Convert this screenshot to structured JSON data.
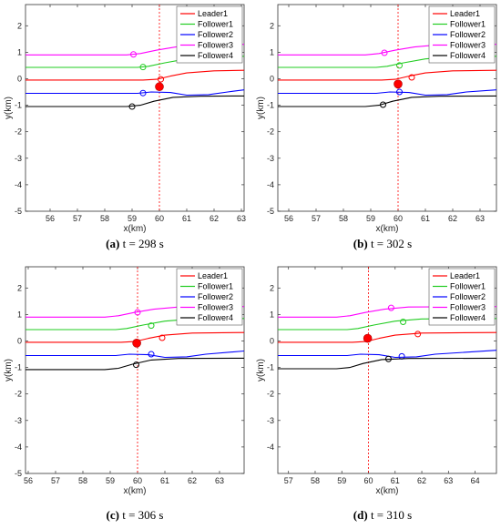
{
  "chart_data": [
    {
      "type": "line",
      "caption_letter": "(a)",
      "caption_text": "t = 298 s",
      "xlabel": "x(km)",
      "ylabel": "y(km)",
      "xlim": [
        55.1,
        63.1
      ],
      "ylim": [
        -5,
        2.8
      ],
      "xticks": [
        56,
        57,
        58,
        59,
        60,
        61,
        62,
        63
      ],
      "yticks": [
        -5,
        -4,
        -3,
        -2,
        -1,
        0,
        1,
        2
      ],
      "vline_x": 60.0,
      "legend": {
        "placement": "top-right",
        "entries": [
          "Leader1",
          "Follower1",
          "Follower2",
          "Follower3",
          "Follower4"
        ]
      },
      "series": [
        {
          "name": "Leader1",
          "color": "#ff0000",
          "x": [
            55.1,
            59.4,
            59.9,
            60.4,
            61.0,
            62.0,
            63.1
          ],
          "y": [
            -0.05,
            -0.05,
            -0.02,
            0.1,
            0.22,
            0.3,
            0.32
          ],
          "marker_x": 60.05,
          "marker_y": -0.02
        },
        {
          "name": "Follower1",
          "color": "#22cc22",
          "x": [
            55.1,
            59.2,
            59.6,
            60.2,
            61.0,
            62.0,
            63.1
          ],
          "y": [
            0.43,
            0.43,
            0.47,
            0.6,
            0.75,
            0.83,
            0.85
          ],
          "marker_x": 59.4,
          "marker_y": 0.44
        },
        {
          "name": "Follower2",
          "color": "#0000ff",
          "x": [
            55.1,
            59.2,
            59.7,
            60.4,
            61.0,
            61.8,
            62.5,
            63.1
          ],
          "y": [
            -0.55,
            -0.55,
            -0.5,
            -0.52,
            -0.62,
            -0.6,
            -0.5,
            -0.42
          ],
          "marker_x": 59.4,
          "marker_y": -0.54
        },
        {
          "name": "Follower3",
          "color": "#ff00ff",
          "x": [
            55.1,
            58.8,
            59.3,
            59.9,
            60.6,
            61.5,
            63.1
          ],
          "y": [
            0.9,
            0.9,
            0.95,
            1.08,
            1.2,
            1.28,
            1.3
          ],
          "marker_x": 59.05,
          "marker_y": 0.92
        },
        {
          "name": "Follower4",
          "color": "#000000",
          "x": [
            55.1,
            58.8,
            59.3,
            59.8,
            60.5,
            61.5,
            63.1
          ],
          "y": [
            -1.05,
            -1.05,
            -1.0,
            -0.85,
            -0.7,
            -0.66,
            -0.65
          ],
          "marker_x": 59.0,
          "marker_y": -1.05
        }
      ],
      "big_dot": {
        "x": 60.0,
        "y": -0.3
      }
    },
    {
      "type": "line",
      "caption_letter": "(b)",
      "caption_text": "t = 302 s",
      "xlabel": "x(km)",
      "ylabel": "y(km)",
      "xlim": [
        55.6,
        63.6
      ],
      "ylim": [
        -5,
        2.8
      ],
      "xticks": [
        56,
        57,
        58,
        59,
        60,
        61,
        62,
        63
      ],
      "yticks": [
        -5,
        -4,
        -3,
        -2,
        -1,
        0,
        1,
        2
      ],
      "vline_x": 60.0,
      "legend": {
        "placement": "top-right",
        "entries": [
          "Leader1",
          "Follower1",
          "Follower2",
          "Follower3",
          "Follower4"
        ]
      },
      "series": [
        {
          "name": "Leader1",
          "color": "#ff0000",
          "x": [
            55.6,
            59.4,
            59.9,
            60.4,
            61.0,
            62.0,
            63.6
          ],
          "y": [
            -0.05,
            -0.05,
            -0.02,
            0.1,
            0.22,
            0.3,
            0.32
          ],
          "marker_x": 60.5,
          "marker_y": 0.05
        },
        {
          "name": "Follower1",
          "color": "#22cc22",
          "x": [
            55.6,
            59.2,
            59.6,
            60.2,
            61.0,
            62.0,
            63.6
          ],
          "y": [
            0.43,
            0.43,
            0.47,
            0.6,
            0.75,
            0.83,
            0.85
          ],
          "marker_x": 60.05,
          "marker_y": 0.5
        },
        {
          "name": "Follower2",
          "color": "#0000ff",
          "x": [
            55.6,
            59.2,
            59.7,
            60.4,
            61.0,
            61.8,
            62.5,
            63.6
          ],
          "y": [
            -0.55,
            -0.55,
            -0.5,
            -0.52,
            -0.62,
            -0.6,
            -0.5,
            -0.42
          ],
          "marker_x": 60.05,
          "marker_y": -0.5
        },
        {
          "name": "Follower3",
          "color": "#ff00ff",
          "x": [
            55.6,
            58.8,
            59.3,
            59.9,
            60.6,
            61.5,
            63.6
          ],
          "y": [
            0.9,
            0.9,
            0.95,
            1.08,
            1.2,
            1.28,
            1.3
          ],
          "marker_x": 59.5,
          "marker_y": 0.98
        },
        {
          "name": "Follower4",
          "color": "#000000",
          "x": [
            55.6,
            58.8,
            59.3,
            59.8,
            60.5,
            61.5,
            63.6
          ],
          "y": [
            -1.05,
            -1.05,
            -1.0,
            -0.85,
            -0.7,
            -0.66,
            -0.65
          ],
          "marker_x": 59.45,
          "marker_y": -0.98
        }
      ],
      "big_dot": {
        "x": 60.0,
        "y": -0.2
      }
    },
    {
      "type": "line",
      "caption_letter": "(c)",
      "caption_text": "t = 306 s",
      "xlabel": "x(km)",
      "ylabel": "y(km)",
      "xlim": [
        55.9,
        63.9
      ],
      "ylim": [
        -5,
        2.8
      ],
      "xticks": [
        56,
        57,
        58,
        59,
        60,
        61,
        62,
        63
      ],
      "yticks": [
        -5,
        -4,
        -3,
        -2,
        -1,
        0,
        1,
        2
      ],
      "vline_x": 60.0,
      "legend": {
        "placement": "top-right",
        "entries": [
          "Leader1",
          "Follower1",
          "Follower2",
          "Follower3",
          "Follower4"
        ]
      },
      "series": [
        {
          "name": "Leader1",
          "color": "#ff0000",
          "x": [
            55.9,
            59.4,
            59.9,
            60.4,
            61.0,
            62.0,
            63.9
          ],
          "y": [
            -0.05,
            -0.05,
            -0.02,
            0.1,
            0.22,
            0.3,
            0.32
          ],
          "marker_x": 60.9,
          "marker_y": 0.12
        },
        {
          "name": "Follower1",
          "color": "#22cc22",
          "x": [
            55.9,
            59.2,
            59.6,
            60.2,
            61.0,
            62.0,
            63.9
          ],
          "y": [
            0.43,
            0.43,
            0.47,
            0.6,
            0.75,
            0.83,
            0.85
          ],
          "marker_x": 60.5,
          "marker_y": 0.58
        },
        {
          "name": "Follower2",
          "color": "#0000ff",
          "x": [
            55.9,
            59.2,
            59.7,
            60.4,
            61.0,
            61.8,
            62.5,
            63.9
          ],
          "y": [
            -0.55,
            -0.55,
            -0.5,
            -0.52,
            -0.62,
            -0.6,
            -0.5,
            -0.38
          ],
          "marker_x": 60.5,
          "marker_y": -0.5
        },
        {
          "name": "Follower3",
          "color": "#ff00ff",
          "x": [
            55.9,
            58.8,
            59.3,
            59.9,
            60.6,
            61.5,
            63.9
          ],
          "y": [
            0.9,
            0.9,
            0.95,
            1.08,
            1.2,
            1.28,
            1.3
          ],
          "marker_x": 60.0,
          "marker_y": 1.08
        },
        {
          "name": "Follower4",
          "color": "#000000",
          "x": [
            55.9,
            58.8,
            59.3,
            59.8,
            60.5,
            61.5,
            63.9
          ],
          "y": [
            -1.08,
            -1.08,
            -1.03,
            -0.88,
            -0.72,
            -0.66,
            -0.65
          ],
          "marker_x": 59.95,
          "marker_y": -0.9
        }
      ],
      "big_dot": {
        "x": 59.97,
        "y": -0.08
      }
    },
    {
      "type": "line",
      "caption_letter": "(d)",
      "caption_text": "t = 310 s",
      "xlabel": "x(km)",
      "ylabel": "y(km)",
      "xlim": [
        56.6,
        64.8
      ],
      "ylim": [
        -5,
        2.8
      ],
      "xticks": [
        57,
        58,
        59,
        60,
        61,
        62,
        63,
        64
      ],
      "yticks": [
        -4,
        -3,
        -2,
        -1,
        0,
        1,
        2
      ],
      "vline_x": 60.0,
      "legend": {
        "placement": "top-right",
        "entries": [
          "Leader1",
          "Follower1",
          "Follower2",
          "Follower3",
          "Follower4"
        ]
      },
      "series": [
        {
          "name": "Leader1",
          "color": "#ff0000",
          "x": [
            56.6,
            59.4,
            59.9,
            60.4,
            61.0,
            62.0,
            64.8
          ],
          "y": [
            -0.05,
            -0.05,
            -0.02,
            0.1,
            0.22,
            0.3,
            0.32
          ],
          "marker_x": 61.85,
          "marker_y": 0.26
        },
        {
          "name": "Follower1",
          "color": "#22cc22",
          "x": [
            56.6,
            59.2,
            59.6,
            60.2,
            61.0,
            62.0,
            64.8
          ],
          "y": [
            0.43,
            0.43,
            0.47,
            0.6,
            0.75,
            0.83,
            0.85
          ],
          "marker_x": 61.3,
          "marker_y": 0.72
        },
        {
          "name": "Follower2",
          "color": "#0000ff",
          "x": [
            56.6,
            59.2,
            59.7,
            60.4,
            61.0,
            61.8,
            62.5,
            64.8
          ],
          "y": [
            -0.55,
            -0.55,
            -0.5,
            -0.52,
            -0.62,
            -0.6,
            -0.5,
            -0.35
          ],
          "marker_x": 61.25,
          "marker_y": -0.58
        },
        {
          "name": "Follower3",
          "color": "#ff00ff",
          "x": [
            56.6,
            58.8,
            59.3,
            59.9,
            60.6,
            61.5,
            64.8
          ],
          "y": [
            0.9,
            0.9,
            0.95,
            1.08,
            1.2,
            1.28,
            1.3
          ],
          "marker_x": 60.85,
          "marker_y": 1.25
        },
        {
          "name": "Follower4",
          "color": "#000000",
          "x": [
            56.6,
            58.8,
            59.3,
            59.8,
            60.5,
            61.5,
            64.8
          ],
          "y": [
            -1.05,
            -1.05,
            -1.0,
            -0.85,
            -0.7,
            -0.66,
            -0.65
          ],
          "marker_x": 60.75,
          "marker_y": -0.68
        }
      ],
      "big_dot": {
        "x": 59.97,
        "y": 0.1
      }
    }
  ]
}
